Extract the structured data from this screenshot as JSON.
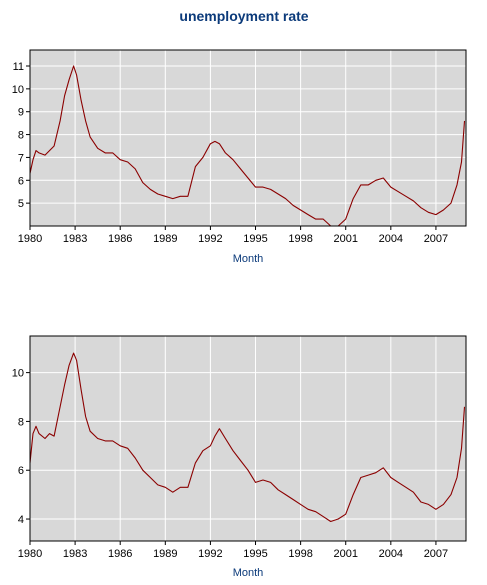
{
  "colors": {
    "plot_bg": "#d8d8d8",
    "grid": "#ffffff",
    "line": "#8b0000",
    "title": "#0b3a7a",
    "frame": "#000000"
  },
  "chart_data": [
    {
      "type": "line",
      "title": "unemployment rate",
      "xlabel": "Month",
      "ylabel": "",
      "xlim": [
        1980.0,
        2009.0
      ],
      "ylim": [
        4.0,
        11.7
      ],
      "x_ticks": [
        1980,
        1983,
        1986,
        1989,
        1992,
        1995,
        1998,
        2001,
        2004,
        2007
      ],
      "y_ticks": [
        5,
        6,
        7,
        8,
        9,
        10,
        11
      ],
      "grid": true,
      "series": [
        {
          "x": [
            1980.0,
            1980.2,
            1980.4,
            1980.6,
            1981.0,
            1981.3,
            1981.6,
            1982.0,
            1982.3,
            1982.6,
            1982.9,
            1983.1,
            1983.4,
            1983.7,
            1984.0,
            1984.5,
            1985.0,
            1985.5,
            1986.0,
            1986.5,
            1987.0,
            1987.5,
            1988.0,
            1988.5,
            1989.0,
            1989.5,
            1990.0,
            1990.5,
            1991.0,
            1991.5,
            1992.0,
            1992.3,
            1992.6,
            1993.0,
            1993.5,
            1994.0,
            1994.5,
            1995.0,
            1995.5,
            1996.0,
            1996.5,
            1997.0,
            1997.5,
            1998.0,
            1998.5,
            1999.0,
            1999.5,
            2000.0,
            2000.5,
            2001.0,
            2001.5,
            2002.0,
            2002.5,
            2003.0,
            2003.5,
            2004.0,
            2004.5,
            2005.0,
            2005.5,
            2006.0,
            2006.5,
            2007.0,
            2007.5,
            2008.0,
            2008.4,
            2008.7,
            2008.9
          ],
          "values": [
            6.3,
            6.9,
            7.3,
            7.2,
            7.1,
            7.3,
            7.5,
            8.6,
            9.7,
            10.4,
            11.0,
            10.6,
            9.5,
            8.6,
            7.9,
            7.4,
            7.2,
            7.2,
            6.9,
            6.8,
            6.5,
            5.9,
            5.6,
            5.4,
            5.3,
            5.2,
            5.3,
            5.3,
            6.6,
            7.0,
            7.6,
            7.7,
            7.6,
            7.2,
            6.9,
            6.5,
            6.1,
            5.7,
            5.7,
            5.6,
            5.4,
            5.2,
            4.9,
            4.7,
            4.5,
            4.3,
            4.3,
            4.0,
            4.0,
            4.3,
            5.2,
            5.8,
            5.8,
            6.0,
            6.1,
            5.7,
            5.5,
            5.3,
            5.1,
            4.8,
            4.6,
            4.5,
            4.7,
            5.0,
            5.8,
            6.8,
            8.6
          ]
        }
      ]
    },
    {
      "type": "line",
      "title": "",
      "xlabel": "Month",
      "ylabel": "",
      "xlim": [
        1980.0,
        2009.0
      ],
      "ylim": [
        3.1,
        11.5
      ],
      "x_ticks": [
        1980,
        1983,
        1986,
        1989,
        1992,
        1995,
        1998,
        2001,
        2004,
        2007
      ],
      "y_ticks": [
        4,
        6,
        8,
        10
      ],
      "grid": true,
      "series": [
        {
          "x": [
            1980.0,
            1980.2,
            1980.4,
            1980.6,
            1981.0,
            1981.3,
            1981.6,
            1982.0,
            1982.3,
            1982.6,
            1982.9,
            1983.1,
            1983.4,
            1983.7,
            1984.0,
            1984.5,
            1985.0,
            1985.5,
            1986.0,
            1986.5,
            1987.0,
            1987.5,
            1988.0,
            1988.5,
            1989.0,
            1989.5,
            1990.0,
            1990.5,
            1991.0,
            1991.5,
            1992.0,
            1992.3,
            1992.6,
            1993.0,
            1993.5,
            1994.0,
            1994.5,
            1995.0,
            1995.5,
            1996.0,
            1996.5,
            1997.0,
            1997.5,
            1998.0,
            1998.5,
            1999.0,
            1999.5,
            2000.0,
            2000.5,
            2001.0,
            2001.5,
            2002.0,
            2002.5,
            2003.0,
            2003.5,
            2004.0,
            2004.5,
            2005.0,
            2005.5,
            2006.0,
            2006.5,
            2007.0,
            2007.5,
            2008.0,
            2008.4,
            2008.7,
            2008.9
          ],
          "values": [
            6.3,
            7.5,
            7.8,
            7.5,
            7.3,
            7.5,
            7.4,
            8.6,
            9.5,
            10.3,
            10.8,
            10.5,
            9.3,
            8.2,
            7.6,
            7.3,
            7.2,
            7.2,
            7.0,
            6.9,
            6.5,
            6.0,
            5.7,
            5.4,
            5.3,
            5.1,
            5.3,
            5.3,
            6.3,
            6.8,
            7.0,
            7.4,
            7.7,
            7.3,
            6.8,
            6.4,
            6.0,
            5.5,
            5.6,
            5.5,
            5.2,
            5.0,
            4.8,
            4.6,
            4.4,
            4.3,
            4.1,
            3.9,
            4.0,
            4.2,
            5.0,
            5.7,
            5.8,
            5.9,
            6.1,
            5.7,
            5.5,
            5.3,
            5.1,
            4.7,
            4.6,
            4.4,
            4.6,
            5.0,
            5.7,
            6.9,
            8.6
          ]
        }
      ]
    }
  ]
}
